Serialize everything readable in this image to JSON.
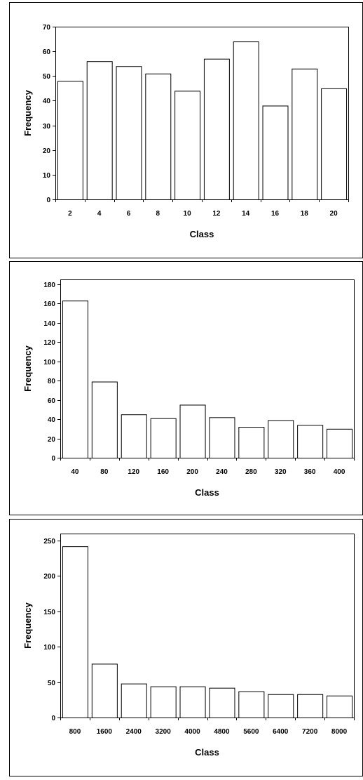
{
  "chart_data": [
    {
      "type": "bar",
      "xlabel": "Class",
      "ylabel": "Frequency",
      "categories": [
        "2",
        "4",
        "6",
        "8",
        "10",
        "12",
        "14",
        "16",
        "18",
        "20"
      ],
      "values": [
        48,
        56,
        54,
        51,
        44,
        57,
        64,
        38,
        53,
        45
      ],
      "ylim": [
        0,
        70
      ],
      "yticks": [
        0,
        10,
        20,
        30,
        40,
        50,
        60,
        70
      ],
      "grid": false,
      "bar_color": "#ffffff",
      "edge_color": "#000000"
    },
    {
      "type": "bar",
      "xlabel": "Class",
      "ylabel": "Frequency",
      "categories": [
        "40",
        "80",
        "120",
        "160",
        "200",
        "240",
        "280",
        "320",
        "360",
        "400"
      ],
      "values": [
        163,
        79,
        45,
        41,
        55,
        42,
        32,
        39,
        34,
        30
      ],
      "ylim": [
        0,
        185
      ],
      "yticks": [
        0,
        20,
        40,
        60,
        80,
        100,
        120,
        140,
        160,
        180
      ],
      "grid": false,
      "bar_color": "#ffffff",
      "edge_color": "#000000"
    },
    {
      "type": "bar",
      "xlabel": "Class",
      "ylabel": "Frequency",
      "categories": [
        "800",
        "1600",
        "2400",
        "3200",
        "4000",
        "4800",
        "5600",
        "6400",
        "7200",
        "8000"
      ],
      "values": [
        242,
        76,
        48,
        44,
        44,
        42,
        37,
        33,
        33,
        31
      ],
      "ylim": [
        0,
        260
      ],
      "yticks": [
        0,
        50,
        100,
        150,
        200,
        250
      ],
      "grid": false,
      "bar_color": "#ffffff",
      "edge_color": "#000000"
    }
  ]
}
